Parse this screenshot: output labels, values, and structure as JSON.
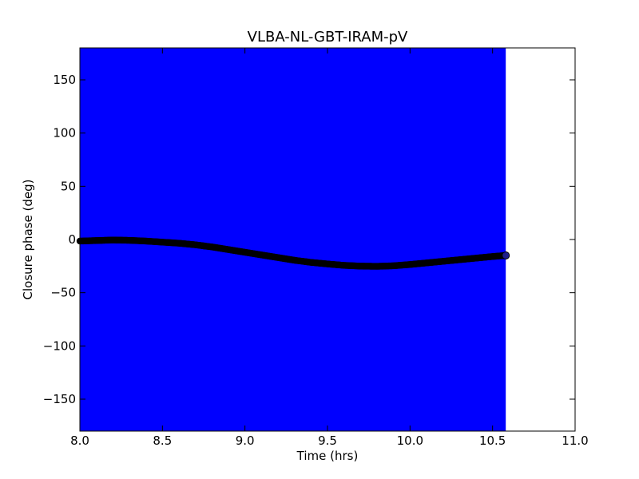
{
  "chart_data": {
    "type": "scatter",
    "title": "VLBA-NL-GBT-IRAM-pV",
    "xlabel": "Time (hrs)",
    "ylabel": "Closure phase (deg)",
    "xlim": [
      8.0,
      11.0
    ],
    "ylim": [
      -180,
      180
    ],
    "x_ticks": [
      8.0,
      8.5,
      9.0,
      9.5,
      10.0,
      10.5,
      11.0
    ],
    "x_tick_labels": [
      "8.0",
      "8.5",
      "9.0",
      "9.5",
      "10.0",
      "10.5",
      "11.0"
    ],
    "y_ticks": [
      -150,
      -100,
      -50,
      0,
      50,
      100,
      150
    ],
    "y_tick_labels": [
      "−150",
      "−100",
      "−50",
      "0",
      "50",
      "100",
      "150"
    ],
    "grid": false,
    "colors": {
      "band": "#0000ff",
      "points": "#000000",
      "last_point": "#1f1f8a",
      "axes": "#000000"
    },
    "series": [
      {
        "error_band": {
          "lower": -180,
          "upper": 180
        },
        "x": [
          8.0,
          8.1,
          8.2,
          8.3,
          8.4,
          8.5,
          8.6,
          8.7,
          8.8,
          8.9,
          9.0,
          9.1,
          9.2,
          9.3,
          9.4,
          9.5,
          9.6,
          9.7,
          9.8,
          9.9,
          10.0,
          10.1,
          10.2,
          10.3,
          10.4,
          10.5,
          10.58
        ],
        "y": [
          -1.5,
          -1.0,
          -0.5,
          -0.8,
          -1.5,
          -2.5,
          -3.5,
          -5.0,
          -7.0,
          -9.5,
          -12.0,
          -14.5,
          -17.0,
          -19.5,
          -21.5,
          -23.0,
          -24.3,
          -25.0,
          -25.2,
          -24.7,
          -23.5,
          -22.0,
          -20.5,
          -19.0,
          -17.5,
          -16.0,
          -15.0
        ]
      }
    ]
  }
}
